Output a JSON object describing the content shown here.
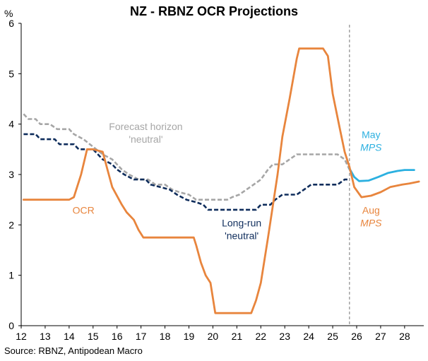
{
  "chart_data": {
    "type": "line",
    "title": "NZ - RBNZ OCR Projections",
    "ylabel": "%",
    "xlabel": "",
    "source": "Source: RBNZ, Antipodean Macro",
    "xlim": [
      12,
      28.8
    ],
    "ylim": [
      0,
      6
    ],
    "x_ticks": [
      12,
      13,
      14,
      15,
      16,
      17,
      18,
      19,
      20,
      21,
      22,
      23,
      24,
      25,
      26,
      27,
      28
    ],
    "y_ticks": [
      0,
      1,
      2,
      3,
      4,
      5,
      6
    ],
    "vline": {
      "x": 25.7,
      "style": "dashed"
    },
    "colors": {
      "ocr": "#e8853d",
      "aug_mps": "#e8853d",
      "may_mps": "#2bb0e0",
      "forecast_neutral": "#a6a6a6",
      "longrun_neutral": "#0f2d5c",
      "axis": "#000000",
      "vline": "#8c8c8c"
    },
    "series": [
      {
        "name": "OCR",
        "key": "ocr",
        "style": "solid",
        "points": [
          [
            12.1,
            2.5
          ],
          [
            14.0,
            2.5
          ],
          [
            14.2,
            2.55
          ],
          [
            14.5,
            3.0
          ],
          [
            14.75,
            3.5
          ],
          [
            15.0,
            3.5
          ],
          [
            15.4,
            3.45
          ],
          [
            15.6,
            3.1
          ],
          [
            15.8,
            2.75
          ],
          [
            16.2,
            2.4
          ],
          [
            16.4,
            2.25
          ],
          [
            16.7,
            2.1
          ],
          [
            16.9,
            1.9
          ],
          [
            17.1,
            1.75
          ],
          [
            19.2,
            1.75
          ],
          [
            19.3,
            1.6
          ],
          [
            19.5,
            1.25
          ],
          [
            19.7,
            1.0
          ],
          [
            19.9,
            0.85
          ],
          [
            20.1,
            0.25
          ],
          [
            21.6,
            0.25
          ],
          [
            21.8,
            0.5
          ],
          [
            22.0,
            0.85
          ],
          [
            22.3,
            1.75
          ],
          [
            22.7,
            3.0
          ],
          [
            22.9,
            3.75
          ],
          [
            23.2,
            4.5
          ],
          [
            23.5,
            5.3
          ],
          [
            23.6,
            5.5
          ],
          [
            24.6,
            5.5
          ],
          [
            24.8,
            5.35
          ],
          [
            25.0,
            4.6
          ],
          [
            25.3,
            3.9
          ],
          [
            25.5,
            3.45
          ],
          [
            25.7,
            3.15
          ]
        ]
      },
      {
        "name": "Aug MPS",
        "key": "aug_mps",
        "style": "solid",
        "points": [
          [
            25.7,
            3.15
          ],
          [
            25.9,
            2.75
          ],
          [
            26.2,
            2.55
          ],
          [
            26.6,
            2.58
          ],
          [
            27.0,
            2.65
          ],
          [
            27.4,
            2.75
          ],
          [
            27.9,
            2.8
          ],
          [
            28.2,
            2.82
          ],
          [
            28.6,
            2.86
          ]
        ]
      },
      {
        "name": "May MPS",
        "key": "may_mps",
        "style": "solid",
        "points": [
          [
            25.7,
            3.12
          ],
          [
            25.9,
            2.95
          ],
          [
            26.1,
            2.87
          ],
          [
            26.5,
            2.88
          ],
          [
            26.9,
            2.95
          ],
          [
            27.3,
            3.03
          ],
          [
            27.7,
            3.07
          ],
          [
            28.0,
            3.09
          ],
          [
            28.4,
            3.09
          ]
        ]
      },
      {
        "name": "Forecast horizon 'neutral'",
        "key": "forecast_neutral",
        "style": "dashed",
        "points": [
          [
            12.1,
            4.2
          ],
          [
            12.3,
            4.1
          ],
          [
            12.6,
            4.1
          ],
          [
            12.8,
            4.0
          ],
          [
            13.2,
            4.0
          ],
          [
            13.5,
            3.9
          ],
          [
            14.0,
            3.9
          ],
          [
            14.2,
            3.8
          ],
          [
            14.6,
            3.7
          ],
          [
            15.0,
            3.55
          ],
          [
            15.4,
            3.4
          ],
          [
            15.8,
            3.3
          ],
          [
            16.2,
            3.1
          ],
          [
            16.5,
            3.0
          ],
          [
            16.9,
            2.9
          ],
          [
            17.3,
            2.9
          ],
          [
            17.6,
            2.8
          ],
          [
            18.0,
            2.8
          ],
          [
            18.3,
            2.7
          ],
          [
            18.6,
            2.65
          ],
          [
            19.0,
            2.6
          ],
          [
            19.3,
            2.5
          ],
          [
            20.6,
            2.5
          ],
          [
            20.8,
            2.55
          ],
          [
            21.1,
            2.6
          ],
          [
            21.4,
            2.7
          ],
          [
            21.7,
            2.8
          ],
          [
            22.0,
            2.9
          ],
          [
            22.3,
            3.1
          ],
          [
            22.5,
            3.2
          ],
          [
            22.9,
            3.2
          ],
          [
            23.2,
            3.3
          ],
          [
            23.5,
            3.4
          ],
          [
            25.2,
            3.4
          ],
          [
            25.5,
            3.3
          ],
          [
            25.7,
            3.1
          ]
        ]
      },
      {
        "name": "Long-run 'neutral'",
        "key": "longrun_neutral",
        "style": "dashed",
        "points": [
          [
            12.1,
            3.8
          ],
          [
            12.6,
            3.8
          ],
          [
            12.8,
            3.7
          ],
          [
            13.4,
            3.7
          ],
          [
            13.6,
            3.6
          ],
          [
            14.2,
            3.6
          ],
          [
            14.4,
            3.5
          ],
          [
            15.0,
            3.5
          ],
          [
            15.4,
            3.3
          ],
          [
            15.8,
            3.2
          ],
          [
            16.0,
            3.1
          ],
          [
            16.3,
            3.0
          ],
          [
            16.7,
            2.9
          ],
          [
            17.2,
            2.9
          ],
          [
            17.4,
            2.8
          ],
          [
            17.8,
            2.75
          ],
          [
            18.2,
            2.7
          ],
          [
            18.5,
            2.6
          ],
          [
            18.9,
            2.5
          ],
          [
            19.3,
            2.45
          ],
          [
            19.6,
            2.4
          ],
          [
            19.8,
            2.3
          ],
          [
            21.8,
            2.3
          ],
          [
            22.0,
            2.4
          ],
          [
            22.4,
            2.4
          ],
          [
            22.6,
            2.5
          ],
          [
            22.9,
            2.6
          ],
          [
            23.5,
            2.6
          ],
          [
            23.8,
            2.7
          ],
          [
            24.1,
            2.8
          ],
          [
            25.2,
            2.8
          ],
          [
            25.5,
            2.9
          ],
          [
            25.7,
            2.9
          ]
        ]
      }
    ],
    "annotations": [
      {
        "key": "forecast_neutral",
        "lines": [
          "Forecast horizon",
          "'neutral'"
        ],
        "anchor_x": 17.2,
        "anchor_y": 3.88,
        "italic": []
      },
      {
        "key": "ocr",
        "lines": [
          "OCR"
        ],
        "anchor_x": 14.6,
        "anchor_y": 2.22,
        "italic": []
      },
      {
        "key": "longrun_neutral",
        "lines": [
          "Long-run",
          "'neutral'"
        ],
        "anchor_x": 21.2,
        "anchor_y": 1.97,
        "italic": []
      },
      {
        "key": "may_mps",
        "lines": [
          "May",
          "MPS"
        ],
        "anchor_x": 26.6,
        "anchor_y": 3.72,
        "italic": [
          1
        ]
      },
      {
        "key": "aug_mps",
        "lines": [
          "Aug",
          "MPS"
        ],
        "anchor_x": 26.6,
        "anchor_y": 2.22,
        "italic": [
          1
        ]
      }
    ]
  }
}
